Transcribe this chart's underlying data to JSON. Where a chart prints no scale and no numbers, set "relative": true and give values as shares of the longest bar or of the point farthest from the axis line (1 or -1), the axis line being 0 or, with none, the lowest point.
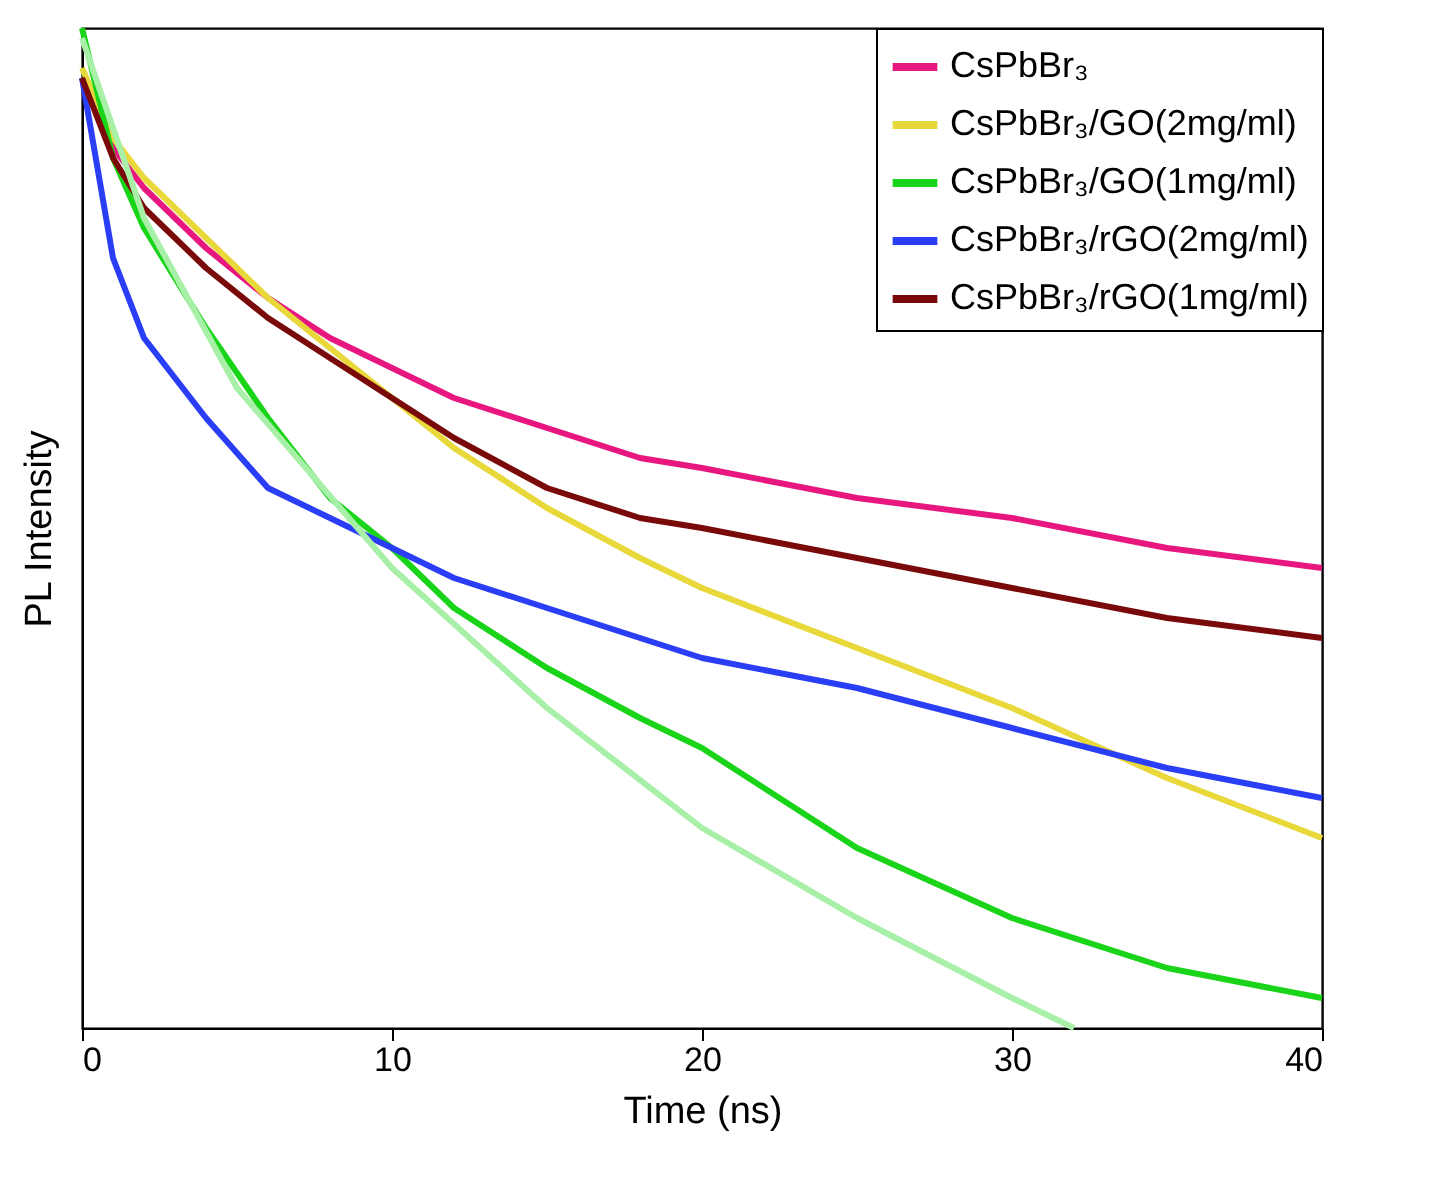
{
  "chart_data": {
    "type": "line",
    "relative": true,
    "xlabel": "Time (ns)",
    "ylabel": "PL Intensity",
    "xlim": [
      0,
      40
    ],
    "xticks": [
      0,
      10,
      20,
      30,
      40
    ],
    "legend": "top right",
    "grid": false,
    "marker": "none",
    "line_style": "solid",
    "x": [
      0,
      1,
      2,
      4,
      6,
      8,
      10,
      12,
      15,
      18,
      20,
      25,
      30,
      35,
      40
    ],
    "series": [
      {
        "name": "CsPbBr₃",
        "color": "#e8177f",
        "values": [
          0.95,
          0.88,
          0.84,
          0.78,
          0.73,
          0.69,
          0.66,
          0.63,
          0.6,
          0.57,
          0.56,
          0.53,
          0.51,
          0.48,
          0.46
        ]
      },
      {
        "name": "CsPbBr₃/GO(2mg/ml)",
        "color": "#e8d83a",
        "values": [
          0.96,
          0.89,
          0.85,
          0.79,
          0.73,
          0.68,
          0.63,
          0.58,
          0.52,
          0.47,
          0.44,
          0.38,
          0.32,
          0.25,
          0.19
        ]
      },
      {
        "name": "CsPbBr₃/GO(1mg/ml)",
        "color": "#19d419",
        "values": [
          1.0,
          0.87,
          0.8,
          0.7,
          0.61,
          0.53,
          0.48,
          0.42,
          0.36,
          0.31,
          0.28,
          0.18,
          0.11,
          0.06,
          0.03
        ]
      },
      {
        "name": "CsPbBr₃/rGO(2mg/ml)",
        "color": "#2a3ef5",
        "values": [
          0.95,
          0.77,
          0.69,
          0.61,
          0.54,
          0.51,
          0.48,
          0.45,
          0.42,
          0.39,
          0.37,
          0.34,
          0.3,
          0.26,
          0.23
        ]
      },
      {
        "name": "CsPbBr₃/rGO(1mg/ml)",
        "color": "#7a0a0a",
        "values": [
          0.95,
          0.87,
          0.82,
          0.76,
          0.71,
          0.67,
          0.63,
          0.59,
          0.54,
          0.51,
          0.5,
          0.47,
          0.44,
          0.41,
          0.39
        ]
      },
      {
        "type": "line",
        "color": "#a8f0a8",
        "x": [
          0,
          2,
          5,
          10,
          15,
          20,
          25,
          30,
          32
        ],
        "values": [
          0.99,
          0.81,
          0.64,
          0.46,
          0.32,
          0.2,
          0.11,
          0.03,
          0.0
        ]
      }
    ]
  }
}
